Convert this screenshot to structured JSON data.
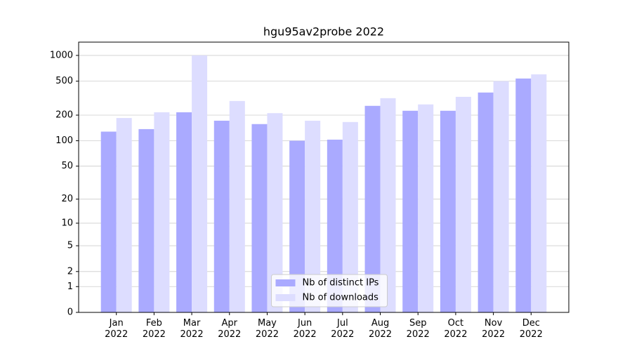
{
  "chart_data": {
    "type": "bar",
    "title": "hgu95av2probe 2022",
    "categories": [
      "Jan\n2022",
      "Feb\n2022",
      "Mar\n2022",
      "Apr\n2022",
      "May\n2022",
      "Jun\n2022",
      "Jul\n2022",
      "Aug\n2022",
      "Sep\n2022",
      "Oct\n2022",
      "Nov\n2022",
      "Dec\n2022"
    ],
    "series": [
      {
        "name": "Nb of distinct IPs",
        "color": "#aaaaff",
        "values": [
          128,
          137,
          216,
          172,
          157,
          100,
          103,
          257,
          225,
          225,
          368,
          537
        ]
      },
      {
        "name": "Nb of downloads",
        "color": "#ddddff",
        "values": [
          185,
          216,
          1000,
          293,
          211,
          172,
          166,
          316,
          267,
          328,
          500,
          601
        ]
      }
    ],
    "yscale": "log1p",
    "ylim": [
      0,
      1430
    ],
    "yticks": [
      0,
      1,
      2,
      5,
      10,
      20,
      50,
      100,
      200,
      500,
      1000
    ],
    "grid": true,
    "legend": "lower center"
  }
}
